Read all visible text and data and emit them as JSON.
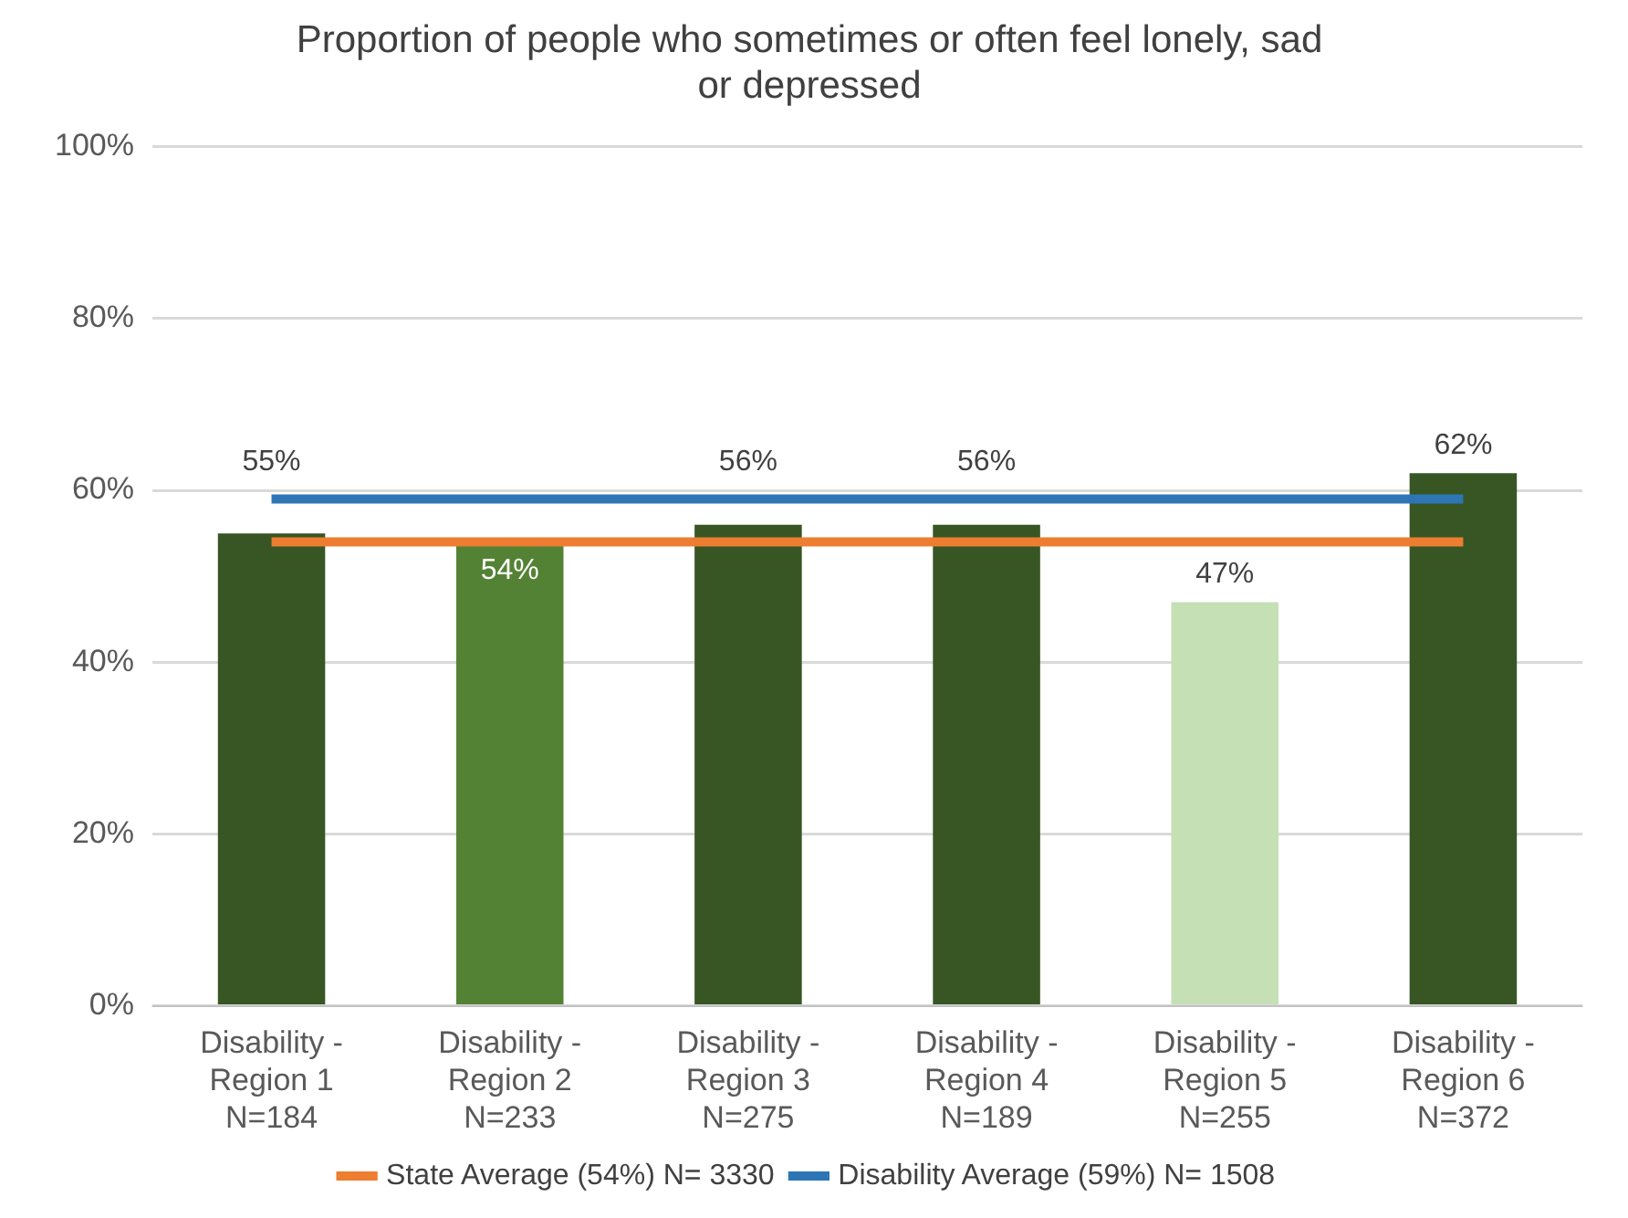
{
  "chart_data": {
    "type": "bar",
    "title": "Proportion of people who sometimes or often feel lonely, sad or depressed",
    "categories": [
      "Disability -\nRegion 1\nN=184",
      "Disability -\nRegion 2\nN=233",
      "Disability -\nRegion 3\nN=275",
      "Disability -\nRegion 4\nN=189",
      "Disability -\nRegion 5\nN=255",
      "Disability -\nRegion 6\nN=372"
    ],
    "series": [
      {
        "colors": [
          "#375623",
          "#548235",
          "#375623",
          "#375623",
          "#c5e0b4",
          "#375623"
        ],
        "values": [
          55,
          54,
          56,
          56,
          47,
          62
        ],
        "value_labels": [
          "55%",
          "54%",
          "56%",
          "56%",
          "47%",
          "62%"
        ]
      },
      {
        "type": "line",
        "name": "State Average (54%) N= 3330",
        "color": "#ed7d31",
        "values": [
          54,
          54,
          54,
          54,
          54,
          54
        ]
      },
      {
        "type": "line",
        "name": "Disability Average (59%) N= 1508",
        "color": "#2e75b6",
        "values": [
          59,
          59,
          59,
          59,
          59,
          59
        ]
      }
    ],
    "ylim": [
      0,
      100
    ],
    "yticks": [
      {
        "value": 0,
        "label": "0%"
      },
      {
        "value": 20,
        "label": "20%"
      },
      {
        "value": 40,
        "label": "40%"
      },
      {
        "value": 60,
        "label": "60%"
      },
      {
        "value": 80,
        "label": "80%"
      },
      {
        "value": 100,
        "label": "100%"
      }
    ],
    "grid": "y",
    "legend": "bottom",
    "marker": "none",
    "line_style": "solid"
  }
}
